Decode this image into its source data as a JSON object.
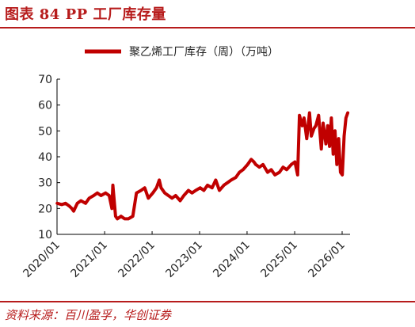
{
  "header": {
    "title": "图表 84 PP 工厂库存量"
  },
  "footer": {
    "source": "资料来源：百川盈孚，华创证券"
  },
  "colors": {
    "accent": "#b71c1c",
    "series": "#c00000"
  },
  "chart_data": {
    "type": "line",
    "title": "",
    "xlabel": "",
    "ylabel": "",
    "ylim": [
      10,
      70
    ],
    "yticks": [
      "10",
      "20",
      "30",
      "40",
      "50",
      "60",
      "70"
    ],
    "xticks": [
      "2020/01",
      "2021/01",
      "2022/01",
      "2023/01",
      "2024/01",
      "2025/01",
      "2026/01"
    ],
    "legend": "top-center",
    "grid": false,
    "series": [
      {
        "name": "聚乙烯工厂库存（周）（万吨）",
        "x": [
          "2020-01-03",
          "2020-02-07",
          "2020-03-06",
          "2020-04-03",
          "2020-04-24",
          "2020-05-08",
          "2020-06-05",
          "2020-07-03",
          "2020-08-07",
          "2020-09-04",
          "2020-10-09",
          "2020-11-06",
          "2020-12-04",
          "2021-01-08",
          "2021-02-05",
          "2021-02-26",
          "2021-03-05",
          "2021-03-26",
          "2021-04-09",
          "2021-05-07",
          "2021-06-04",
          "2021-07-02",
          "2021-08-06",
          "2021-09-03",
          "2021-10-08",
          "2021-11-05",
          "2021-12-03",
          "2022-01-07",
          "2022-02-04",
          "2022-02-25",
          "2022-03-11",
          "2022-04-08",
          "2022-05-06",
          "2022-06-03",
          "2022-07-01",
          "2022-08-05",
          "2022-09-02",
          "2022-10-07",
          "2022-11-04",
          "2022-12-02",
          "2023-01-06",
          "2023-02-03",
          "2023-03-03",
          "2023-04-07",
          "2023-05-05",
          "2023-06-02",
          "2023-07-07",
          "2023-08-04",
          "2023-09-01",
          "2023-10-06",
          "2023-11-03",
          "2023-12-01",
          "2024-01-05",
          "2024-02-02",
          "2024-02-23",
          "2024-03-08",
          "2024-04-05",
          "2024-05-03",
          "2024-06-07",
          "2024-07-05",
          "2024-08-02",
          "2024-09-06",
          "2024-10-04",
          "2024-11-01",
          "2024-12-06",
          "2025-01-03",
          "2025-01-24",
          "2025-02-07",
          "2025-02-28",
          "2025-03-14",
          "2025-04-04",
          "2025-04-25",
          "2025-05-09",
          "2025-05-30",
          "2025-06-13",
          "2025-07-04",
          "2025-07-25",
          "2025-08-08",
          "2025-08-29",
          "2025-09-12",
          "2025-09-26",
          "2025-10-10",
          "2025-10-24",
          "2025-11-07",
          "2025-11-21",
          "2025-12-05",
          "2025-12-19",
          "2026-01-02",
          "2026-01-16",
          "2026-01-30",
          "2026-02-13"
        ],
        "y": [
          22,
          21.5,
          22,
          21,
          20,
          19,
          22,
          23,
          22,
          24,
          25,
          26,
          25,
          26,
          25,
          20,
          29,
          17,
          16,
          17,
          16,
          16,
          17,
          26,
          27,
          28,
          24,
          26,
          28,
          31,
          28,
          26,
          25,
          24,
          25,
          23,
          25,
          27,
          26,
          27,
          28,
          27,
          29,
          28,
          31,
          27,
          29,
          30,
          31,
          32,
          34,
          35,
          37,
          39,
          38,
          37,
          36,
          37,
          34,
          35,
          33,
          34,
          36,
          35,
          37,
          38,
          33,
          56,
          52,
          55,
          47,
          57,
          48,
          51,
          52,
          56,
          43,
          53,
          45,
          52,
          44,
          55,
          41,
          50,
          37,
          47,
          34,
          33,
          48,
          55,
          57
        ]
      }
    ]
  }
}
